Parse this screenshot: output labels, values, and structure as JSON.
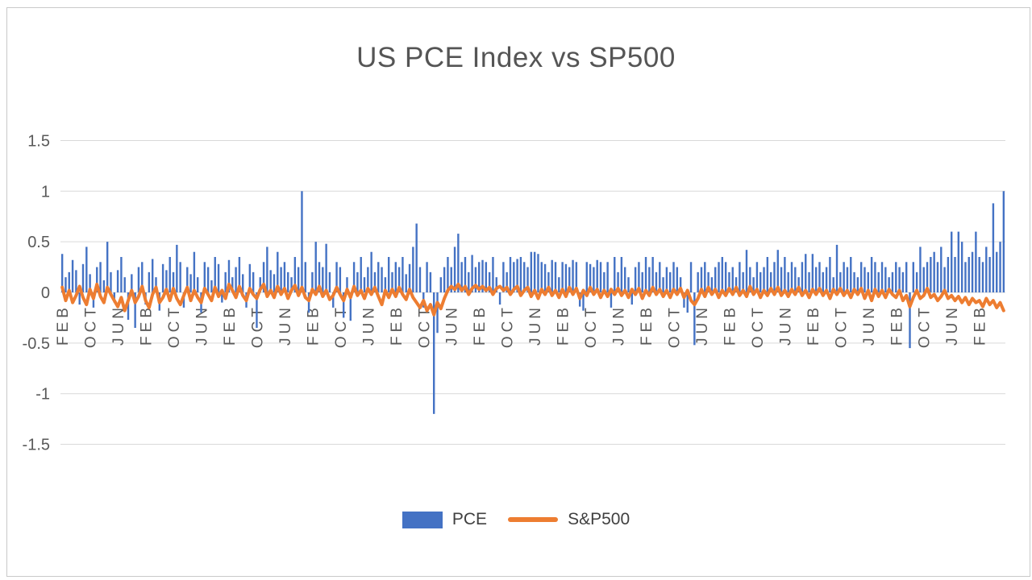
{
  "title": "US PCE Index vs SP500",
  "legend": {
    "pce_label": "PCE",
    "sp500_label": "S&P500"
  },
  "colors": {
    "pce": "#4472C4",
    "sp500": "#ED7D31",
    "grid": "#D9D9D9",
    "axis_text": "#595959",
    "frame": "#C9C9C9"
  },
  "chart_data": {
    "type": "bar",
    "title": "US PCE Index vs SP500",
    "xlabel": "",
    "ylabel": "",
    "ylim": [
      -1.5,
      1.5
    ],
    "grid": true,
    "legend_position": "bottom",
    "y_ticks": [
      1.5,
      1,
      0.5,
      0,
      -0.5,
      -1,
      -1.5
    ],
    "y_tick_labels": [
      "1.5",
      "1",
      "0.5",
      "0",
      "-0.5",
      "-1",
      "-1.5"
    ],
    "x_tick_interval": 8,
    "x_tick_labels": [
      "FEB",
      "OCT",
      "JUN",
      "FEB",
      "OCT",
      "JUN",
      "FEB",
      "OCT",
      "JUN",
      "FEB",
      "OCT",
      "JUN",
      "FEB",
      "OCT",
      "JUN",
      "FEB",
      "OCT",
      "JUN",
      "FEB",
      "OCT",
      "JUN",
      "FEB",
      "OCT",
      "JUN",
      "FEB",
      "OCT",
      "JUN",
      "FEB",
      "OCT",
      "JUN",
      "FEB",
      "OCT",
      "JUN",
      "FEB"
    ],
    "series": [
      {
        "name": "PCE",
        "type": "bar",
        "color": "#4472C4",
        "values": [
          0.38,
          0.15,
          0.2,
          0.32,
          0.22,
          -0.12,
          0.28,
          0.45,
          0.18,
          -0.15,
          0.25,
          0.3,
          0.12,
          0.5,
          0.2,
          -0.1,
          0.22,
          0.35,
          0.15,
          -0.27,
          0.18,
          -0.35,
          0.25,
          0.3,
          -0.12,
          0.2,
          0.33,
          0.15,
          -0.18,
          0.28,
          0.22,
          0.35,
          0.2,
          0.47,
          0.3,
          -0.15,
          0.25,
          0.18,
          0.4,
          0.15,
          -0.2,
          0.3,
          0.25,
          0.12,
          0.35,
          0.28,
          -0.1,
          0.2,
          0.32,
          0.15,
          0.25,
          0.35,
          0.18,
          -0.15,
          0.28,
          0.2,
          -0.35,
          0.15,
          0.3,
          0.45,
          0.22,
          0.18,
          0.4,
          0.25,
          0.3,
          0.2,
          0.15,
          0.35,
          0.25,
          1.0,
          0.3,
          -0.2,
          0.2,
          0.5,
          0.3,
          0.25,
          0.48,
          0.2,
          -0.15,
          0.3,
          0.25,
          -0.25,
          0.15,
          -0.28,
          0.3,
          0.2,
          0.35,
          0.15,
          0.25,
          0.4,
          0.2,
          0.3,
          0.25,
          0.15,
          0.35,
          0.2,
          0.3,
          0.25,
          0.35,
          0.18,
          0.28,
          0.45,
          0.68,
          0.25,
          -0.15,
          0.3,
          0.2,
          -1.2,
          -0.4,
          0.15,
          0.25,
          0.35,
          0.25,
          0.45,
          0.58,
          0.3,
          0.35,
          0.2,
          0.37,
          0.25,
          0.3,
          0.32,
          0.3,
          0.2,
          0.35,
          0.15,
          -0.12,
          0.3,
          0.2,
          0.35,
          0.3,
          0.33,
          0.35,
          0.3,
          0.25,
          0.4,
          0.4,
          0.38,
          0.3,
          0.28,
          0.2,
          0.32,
          0.3,
          0.15,
          0.3,
          0.28,
          0.25,
          0.32,
          0.3,
          -0.14,
          -0.18,
          0.3,
          0.28,
          0.25,
          0.32,
          0.3,
          0.2,
          0.3,
          -0.15,
          0.35,
          0.2,
          0.35,
          0.25,
          0.15,
          -0.12,
          0.25,
          0.3,
          0.2,
          0.35,
          0.25,
          0.35,
          0.2,
          0.3,
          0.15,
          0.25,
          0.2,
          0.3,
          0.25,
          0.15,
          -0.15,
          -0.2,
          0.3,
          -0.52,
          0.2,
          0.25,
          0.3,
          0.2,
          0.15,
          0.25,
          0.3,
          0.35,
          0.3,
          0.2,
          0.25,
          0.15,
          0.3,
          0.2,
          0.42,
          0.25,
          0.15,
          0.3,
          0.2,
          0.25,
          0.35,
          0.2,
          0.3,
          0.42,
          0.25,
          0.35,
          0.2,
          0.3,
          0.25,
          0.15,
          0.3,
          0.38,
          0.2,
          0.38,
          0.25,
          0.3,
          0.2,
          0.25,
          0.35,
          0.15,
          0.47,
          0.2,
          0.3,
          0.25,
          0.35,
          0.2,
          0.15,
          0.3,
          0.25,
          0.2,
          0.35,
          0.3,
          0.2,
          0.3,
          0.25,
          0.15,
          0.2,
          0.3,
          0.25,
          0.2,
          0.3,
          -0.55,
          0.3,
          0.2,
          0.45,
          0.25,
          0.3,
          0.35,
          0.4,
          0.3,
          0.45,
          0.25,
          0.35,
          0.6,
          0.35,
          0.6,
          0.5,
          0.3,
          0.35,
          0.4,
          0.6,
          0.35,
          0.3,
          0.45,
          0.35,
          0.88,
          0.4,
          0.5,
          1.0
        ]
      },
      {
        "name": "S&P500",
        "type": "line",
        "color": "#ED7D31",
        "values": [
          0.05,
          -0.08,
          0.02,
          -0.1,
          -0.03,
          0.06,
          -0.05,
          -0.12,
          0.03,
          -0.06,
          0.08,
          -0.04,
          -0.1,
          0.05,
          -0.02,
          -0.08,
          -0.14,
          -0.05,
          -0.18,
          -0.08,
          0.02,
          -0.1,
          -0.04,
          0.06,
          -0.08,
          -0.15,
          -0.02,
          0.05,
          -0.1,
          -0.05,
          0.03,
          -0.08,
          0.04,
          -0.06,
          -0.12,
          -0.03,
          0.05,
          -0.08,
          0.02,
          -0.05,
          -0.1,
          0.04,
          -0.02,
          -0.08,
          0.05,
          -0.04,
          0.02,
          -0.06,
          0.08,
          0.02,
          -0.05,
          0.06,
          -0.03,
          -0.08,
          0.04,
          -0.02,
          -0.06,
          0.03,
          0.08,
          -0.04,
          0.02,
          -0.05,
          0.06,
          -0.02,
          0.04,
          -0.06,
          0.02,
          0.07,
          -0.03,
          0.05,
          -0.05,
          -0.08,
          0.03,
          -0.02,
          0.06,
          -0.04,
          0.02,
          -0.07,
          -0.03,
          0.05,
          -0.02,
          -0.08,
          0.03,
          -0.05,
          0.06,
          -0.03,
          0.02,
          -0.06,
          0.04,
          -0.02,
          0.05,
          -0.04,
          -0.12,
          0.02,
          -0.05,
          0.03,
          -0.04,
          0.05,
          -0.02,
          -0.07,
          0.03,
          -0.05,
          -0.1,
          -0.15,
          -0.08,
          -0.18,
          -0.12,
          -0.22,
          -0.1,
          -0.16,
          -0.06,
          0.02,
          0.06,
          0.03,
          0.08,
          0.02,
          0.06,
          -0.02,
          0.04,
          0.07,
          0.03,
          0.06,
          0.02,
          0.05,
          -0.02,
          0.04,
          0.06,
          0.02,
          0.05,
          -0.02,
          0.03,
          0.06,
          -0.03,
          0.02,
          0.05,
          -0.04,
          0.02,
          -0.06,
          0.03,
          -0.02,
          0.05,
          -0.03,
          0.02,
          -0.05,
          0.03,
          -0.04,
          0.05,
          -0.02,
          0.04,
          -0.06,
          0.02,
          -0.03,
          0.05,
          -0.02,
          0.03,
          -0.05,
          0.02,
          -0.04,
          0.03,
          -0.02,
          0.04,
          -0.03,
          0.02,
          -0.05,
          0.03,
          -0.02,
          0.04,
          -0.06,
          0.02,
          -0.03,
          0.05,
          -0.02,
          0.03,
          -0.04,
          0.02,
          -0.05,
          0.03,
          -0.02,
          0.04,
          -0.05,
          0.02,
          -0.08,
          -0.12,
          -0.06,
          0.03,
          -0.04,
          0.05,
          -0.02,
          0.03,
          -0.05,
          0.02,
          -0.03,
          0.04,
          -0.02,
          0.05,
          -0.03,
          0.02,
          -0.04,
          0.06,
          -0.02,
          0.03,
          -0.05,
          0.02,
          -0.03,
          0.04,
          -0.02,
          0.05,
          -0.03,
          0.02,
          -0.04,
          0.03,
          -0.02,
          0.05,
          -0.03,
          0.02,
          -0.05,
          0.03,
          -0.02,
          0.04,
          -0.03,
          0.02,
          -0.06,
          0.03,
          -0.02,
          0.04,
          -0.03,
          0.02,
          -0.05,
          0.03,
          -0.02,
          0.04,
          -0.06,
          0.02,
          -0.08,
          0.03,
          -0.04,
          0.02,
          -0.05,
          0.03,
          -0.02,
          -0.05,
          0.02,
          -0.08,
          -0.03,
          -0.14,
          -0.05,
          0.02,
          -0.06,
          -0.03,
          0.04,
          -0.05,
          -0.02,
          -0.08,
          -0.04,
          0.02,
          -0.06,
          -0.03,
          -0.08,
          -0.04,
          -0.1,
          -0.05,
          -0.12,
          -0.06,
          -0.1,
          -0.08,
          -0.14,
          -0.06,
          -0.12,
          -0.08,
          -0.15,
          -0.1,
          -0.18
        ]
      }
    ]
  }
}
